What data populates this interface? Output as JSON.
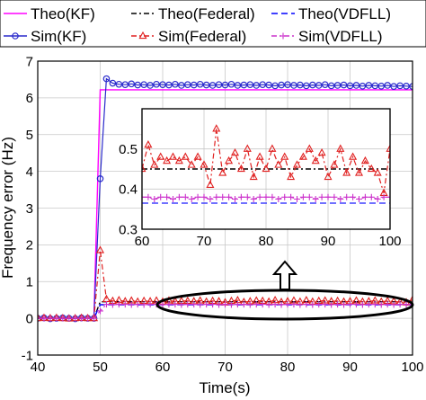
{
  "chart_data": {
    "type": "line",
    "xlabel": "Time(s)",
    "ylabel": "Frequency error (Hz)",
    "xlim": [
      40,
      100
    ],
    "ylim": [
      -1,
      7
    ],
    "xticks": [
      "40",
      "50",
      "60",
      "70",
      "80",
      "90",
      "100"
    ],
    "yticks": [
      "-1",
      "0",
      "1",
      "2",
      "3",
      "4",
      "5",
      "6",
      "7"
    ],
    "grid": true,
    "legend_position": "top",
    "series": [
      {
        "name": "Theo(KF)",
        "color": "#ff00ff",
        "style": "solid",
        "x": [
          40,
          49,
          50,
          100
        ],
        "y": [
          0,
          0,
          6.22,
          6.22
        ]
      },
      {
        "name": "Theo(Federal)",
        "color": "#000000",
        "style": "dashdot",
        "x": [
          40,
          49,
          50,
          100
        ],
        "y": [
          0,
          0,
          0.45,
          0.45
        ]
      },
      {
        "name": "Theo(VDFLL)",
        "color": "#0000ff",
        "style": "dashed",
        "x": [
          40,
          49,
          50,
          100
        ],
        "y": [
          0,
          0,
          0.37,
          0.37
        ]
      },
      {
        "name": "Sim(KF)",
        "color": "#2a2acc",
        "marker": "circle",
        "x": [
          40,
          41,
          42,
          43,
          44,
          45,
          46,
          47,
          48,
          49,
          50,
          51,
          52,
          53,
          54,
          55,
          56,
          57,
          58,
          59,
          60,
          61,
          62,
          63,
          64,
          65,
          66,
          67,
          68,
          69,
          70,
          71,
          72,
          73,
          74,
          75,
          76,
          77,
          78,
          79,
          80,
          81,
          82,
          83,
          84,
          85,
          86,
          87,
          88,
          89,
          90,
          91,
          92,
          93,
          94,
          95,
          96,
          97,
          98,
          99,
          100
        ],
        "y": [
          0,
          0.01,
          -0.01,
          0,
          0.01,
          0,
          -0.01,
          0.01,
          0,
          0,
          3.8,
          6.52,
          6.4,
          6.37,
          6.36,
          6.38,
          6.35,
          6.36,
          6.34,
          6.37,
          6.36,
          6.35,
          6.37,
          6.34,
          6.36,
          6.35,
          6.37,
          6.35,
          6.34,
          6.36,
          6.35,
          6.37,
          6.34,
          6.35,
          6.36,
          6.34,
          6.36,
          6.35,
          6.33,
          6.35,
          6.36,
          6.34,
          6.35,
          6.33,
          6.35,
          6.34,
          6.36,
          6.33,
          6.34,
          6.35,
          6.33,
          6.34,
          6.32,
          6.34,
          6.33,
          6.32,
          6.34,
          6.31,
          6.33,
          6.32,
          6.31
        ]
      },
      {
        "name": "Sim(Federal)",
        "color": "#e02020",
        "style": "dashdot",
        "marker": "triangle",
        "x": [
          40,
          41,
          42,
          43,
          44,
          45,
          46,
          47,
          48,
          49,
          50,
          51,
          52,
          53,
          54,
          55,
          56,
          57,
          58,
          59,
          60,
          61,
          62,
          63,
          64,
          65,
          66,
          67,
          68,
          69,
          70,
          71,
          72,
          73,
          74,
          75,
          76,
          77,
          78,
          79,
          80,
          81,
          82,
          83,
          84,
          85,
          86,
          87,
          88,
          89,
          90,
          91,
          92,
          93,
          94,
          95,
          96,
          97,
          98,
          99,
          100
        ],
        "y": [
          0,
          0.01,
          0,
          0.01,
          0,
          -0.01,
          0,
          0.01,
          0,
          0,
          1.85,
          0.52,
          0.47,
          0.49,
          0.46,
          0.48,
          0.45,
          0.47,
          0.46,
          0.48,
          0.45,
          0.48,
          0.46,
          0.47,
          0.47,
          0.46,
          0.48,
          0.45,
          0.47,
          0.46,
          0.43,
          0.47,
          0.49,
          0.44,
          0.46,
          0.48,
          0.47,
          0.45,
          0.49,
          0.44,
          0.46,
          0.48,
          0.45,
          0.49,
          0.45,
          0.47,
          0.48,
          0.46,
          0.47,
          0.45,
          0.46,
          0.48,
          0.45,
          0.46,
          0.48,
          0.45,
          0.47,
          0.46,
          0.44,
          0.43,
          0.5
        ]
      },
      {
        "name": "Sim(VDFLL)",
        "color": "#cc33cc",
        "style": "dashdot",
        "marker": "plus",
        "x": [
          40,
          41,
          42,
          43,
          44,
          45,
          46,
          47,
          48,
          49,
          50,
          51,
          52,
          53,
          54,
          55,
          56,
          57,
          58,
          59,
          60,
          61,
          62,
          63,
          64,
          65,
          66,
          67,
          68,
          69,
          70,
          71,
          72,
          73,
          74,
          75,
          76,
          77,
          78,
          79,
          80,
          81,
          82,
          83,
          84,
          85,
          86,
          87,
          88,
          89,
          90,
          91,
          92,
          93,
          94,
          95,
          96,
          97,
          98,
          99,
          100
        ],
        "y": [
          0,
          0,
          0,
          0,
          0,
          0,
          0,
          0,
          0,
          0,
          0.2,
          0.38,
          0.37,
          0.38,
          0.38,
          0.37,
          0.38,
          0.37,
          0.38,
          0.38,
          0.37,
          0.38,
          0.38,
          0.37,
          0.38,
          0.38,
          0.37,
          0.38,
          0.38,
          0.37,
          0.38,
          0.37,
          0.38,
          0.38,
          0.37,
          0.38,
          0.38,
          0.37,
          0.38,
          0.37,
          0.38,
          0.38,
          0.37,
          0.38,
          0.37,
          0.38,
          0.38,
          0.37,
          0.38,
          0.37,
          0.38,
          0.38,
          0.37,
          0.38,
          0.38,
          0.37,
          0.38,
          0.37,
          0.38,
          0.38,
          0.38
        ]
      }
    ],
    "inset": {
      "xlim": [
        60,
        100
      ],
      "ylim": [
        0.3,
        0.6
      ],
      "xticks": [
        "60",
        "70",
        "80",
        "90",
        "100"
      ],
      "yticks": [
        "0.3",
        "0.4",
        "0.5"
      ],
      "series": [
        {
          "name": "Theo(Federal)",
          "color": "#000000",
          "style": "dashdot",
          "x": [
            60,
            100
          ],
          "y": [
            0.45,
            0.45
          ]
        },
        {
          "name": "Theo(VDFLL)",
          "color": "#4040ff",
          "style": "dashed",
          "x": [
            60,
            100
          ],
          "y": [
            0.365,
            0.365
          ]
        },
        {
          "name": "Sim(Federal)",
          "color": "#e02020",
          "style": "dashdot",
          "marker": "triangle",
          "x": [
            60,
            61,
            62,
            63,
            64,
            65,
            66,
            67,
            68,
            69,
            70,
            71,
            72,
            73,
            74,
            75,
            76,
            77,
            78,
            79,
            80,
            81,
            82,
            83,
            84,
            85,
            86,
            87,
            88,
            89,
            90,
            91,
            92,
            93,
            94,
            95,
            96,
            97,
            98,
            99,
            100
          ],
          "y": [
            0.45,
            0.51,
            0.46,
            0.48,
            0.47,
            0.48,
            0.47,
            0.48,
            0.46,
            0.48,
            0.46,
            0.41,
            0.55,
            0.44,
            0.47,
            0.49,
            0.45,
            0.5,
            0.43,
            0.48,
            0.45,
            0.5,
            0.46,
            0.48,
            0.43,
            0.46,
            0.48,
            0.5,
            0.47,
            0.49,
            0.43,
            0.46,
            0.5,
            0.44,
            0.48,
            0.44,
            0.47,
            0.45,
            0.44,
            0.39,
            0.5
          ]
        },
        {
          "name": "Sim(VDFLL)",
          "color": "#cc33cc",
          "style": "dashdot",
          "marker": "plus",
          "x": [
            60,
            61,
            62,
            63,
            64,
            65,
            66,
            67,
            68,
            69,
            70,
            71,
            72,
            73,
            74,
            75,
            76,
            77,
            78,
            79,
            80,
            81,
            82,
            83,
            84,
            85,
            86,
            87,
            88,
            89,
            90,
            91,
            92,
            93,
            94,
            95,
            96,
            97,
            98,
            99,
            100
          ],
          "y": [
            0.38,
            0.38,
            0.375,
            0.38,
            0.38,
            0.375,
            0.38,
            0.38,
            0.375,
            0.38,
            0.38,
            0.375,
            0.38,
            0.38,
            0.38,
            0.375,
            0.38,
            0.38,
            0.375,
            0.38,
            0.38,
            0.38,
            0.375,
            0.38,
            0.38,
            0.375,
            0.38,
            0.38,
            0.375,
            0.38,
            0.38,
            0.38,
            0.375,
            0.38,
            0.38,
            0.375,
            0.38,
            0.38,
            0.375,
            0.38,
            0.38
          ]
        }
      ]
    }
  }
}
